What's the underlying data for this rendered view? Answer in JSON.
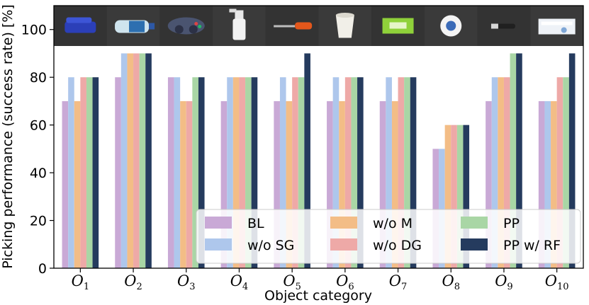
{
  "chart_data": {
    "type": "bar",
    "title": "",
    "xlabel": "Object category",
    "ylabel": "Picking performance (success rate) [%]",
    "ylim": [
      0,
      110
    ],
    "yticks": [
      0,
      20,
      40,
      60,
      80,
      100
    ],
    "legend_position": "bottom-right",
    "categories": [
      {
        "base": "O",
        "sub": "1"
      },
      {
        "base": "O",
        "sub": "2"
      },
      {
        "base": "O",
        "sub": "3"
      },
      {
        "base": "O",
        "sub": "4"
      },
      {
        "base": "O",
        "sub": "5"
      },
      {
        "base": "O",
        "sub": "6"
      },
      {
        "base": "O",
        "sub": "7"
      },
      {
        "base": "O",
        "sub": "8"
      },
      {
        "base": "O",
        "sub": "9"
      },
      {
        "base": "O",
        "sub": "10"
      }
    ],
    "object_photos": [
      "stapler",
      "water-bottle",
      "game-controller",
      "spray-bottle",
      "screwdriver",
      "paper-cup",
      "green-box",
      "tape-roll",
      "marker-pen",
      "tissue-box"
    ],
    "series": [
      {
        "name": "BL",
        "color": "#c9a9d6",
        "values": [
          70,
          80,
          80,
          70,
          70,
          70,
          70,
          50,
          70,
          70
        ]
      },
      {
        "name": "w/o SG",
        "color": "#aec7ec",
        "values": [
          80,
          90,
          80,
          80,
          80,
          80,
          80,
          50,
          80,
          70
        ]
      },
      {
        "name": "w/o M",
        "color": "#f3bd86",
        "values": [
          70,
          90,
          70,
          80,
          70,
          70,
          70,
          60,
          80,
          70
        ]
      },
      {
        "name": "w/o DG",
        "color": "#eea9a7",
        "values": [
          80,
          90,
          70,
          80,
          80,
          80,
          80,
          60,
          80,
          80
        ]
      },
      {
        "name": "PP",
        "color": "#a9d6a5",
        "values": [
          80,
          90,
          80,
          80,
          80,
          80,
          80,
          60,
          90,
          80
        ]
      },
      {
        "name": "PP w/ RF",
        "color": "#253b5e",
        "values": [
          80,
          90,
          80,
          80,
          90,
          80,
          80,
          60,
          90,
          90
        ]
      }
    ]
  }
}
